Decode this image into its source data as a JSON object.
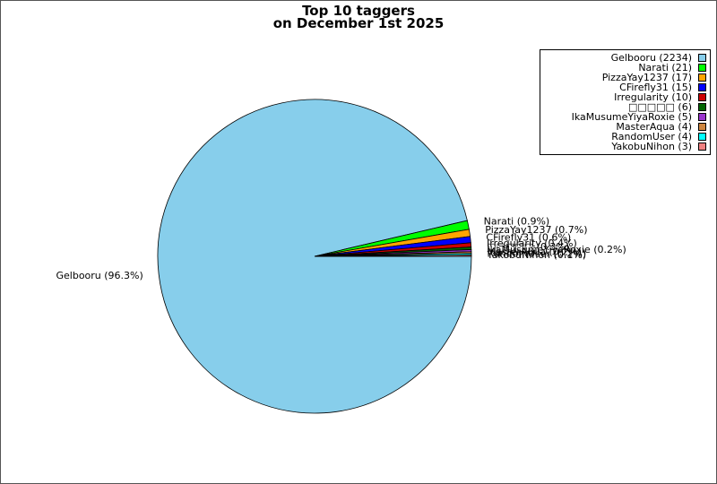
{
  "chart_data": {
    "type": "pie",
    "title_lines": [
      "Top 10 taggers",
      "on December 1st 2025"
    ],
    "start_angle_deg": 0,
    "direction": "clockwise",
    "slices": [
      {
        "name": "Gelbooru",
        "count": 2234,
        "color": "#87ceeb",
        "legend": "Gelbooru (2234)",
        "label": "Gelbooru (96.3%)"
      },
      {
        "name": "Narati",
        "count": 21,
        "color": "#00ff00",
        "legend": "Narati (21)",
        "label": "Narati (0.9%)"
      },
      {
        "name": "PizzaYay1237",
        "count": 17,
        "color": "#ffa500",
        "legend": "PizzaYay1237 (17)",
        "label": "PizzaYay1237 (0.7%)"
      },
      {
        "name": "CFirefly31",
        "count": 15,
        "color": "#0000ff",
        "legend": "CFirefly31 (15)",
        "label": "CFirefly31 (0.6%)"
      },
      {
        "name": "Irregularity",
        "count": 10,
        "color": "#cc0000",
        "legend": "Irregularity (10)",
        "label": "Irregularity (0.4%)"
      },
      {
        "name": "□□□□□",
        "count": 6,
        "color": "#006400",
        "legend": "□□□□□ (6)",
        "label": "□□□□□ (0.3%)"
      },
      {
        "name": "IkaMusumeYiyaRoxie",
        "count": 5,
        "color": "#9932cc",
        "legend": "IkaMusumeYiyaRoxie (5)",
        "label": "IkaMusumeYiyaRoxie (0.2%)"
      },
      {
        "name": "MasterAqua",
        "count": 4,
        "color": "#cd853f",
        "legend": "MasterAqua (4)",
        "label": "MasterAqua (0.2%)"
      },
      {
        "name": "RandomUser",
        "count": 4,
        "color": "#00ffff",
        "legend": "RandomUser (4)",
        "label": "RandomUser (0.2%)"
      },
      {
        "name": "YakobuNihon",
        "count": 3,
        "color": "#f08080",
        "legend": "YakobuNihon (3)",
        "label": "YakobuNihon (0.1%)"
      }
    ],
    "legend_position": "top-right"
  }
}
